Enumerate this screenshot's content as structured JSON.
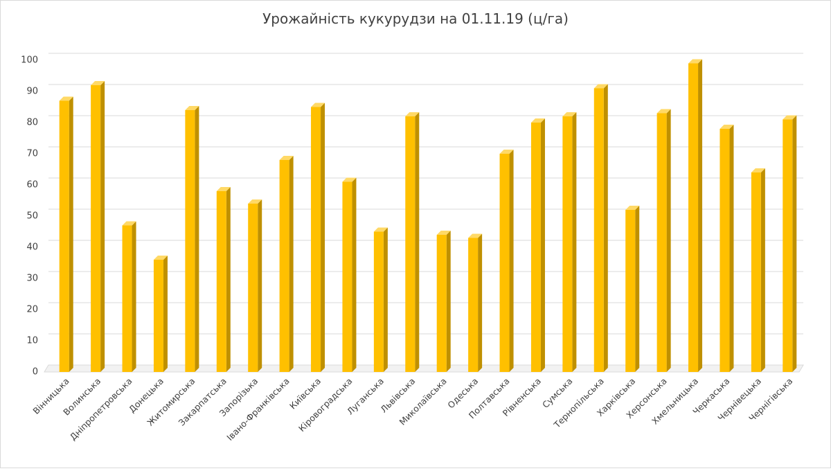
{
  "chart_data": {
    "type": "bar",
    "title": "Урожайність кукурудзи на 01.11.19 (ц/га)",
    "categories": [
      "Вінницька",
      "Волинська",
      "Дніпропетровська",
      "Донецька",
      "Житомирська",
      "Закарпатська",
      "Запорізька",
      "Івано-Франківська",
      "Київська",
      "Кіровоградська",
      "Луганська",
      "Львівська",
      "Миколаївська",
      "Одеська",
      "Полтавська",
      "Рівненська",
      "Сумська",
      "Тернопільська",
      "Харківська",
      "Херсонська",
      "Хмельницька",
      "Черкаська",
      "Чернівецька",
      "Чернігівська"
    ],
    "values": [
      87,
      92,
      47,
      36,
      84,
      58,
      54,
      68,
      85,
      61,
      45,
      82,
      44,
      43,
      70,
      80,
      82,
      91,
      52,
      83,
      99,
      78,
      64,
      81
    ],
    "color": "#ffc000",
    "ylim": [
      0,
      100
    ],
    "yticks": [
      0,
      10,
      20,
      30,
      40,
      50,
      60,
      70,
      80,
      90,
      100
    ],
    "grid": true
  }
}
